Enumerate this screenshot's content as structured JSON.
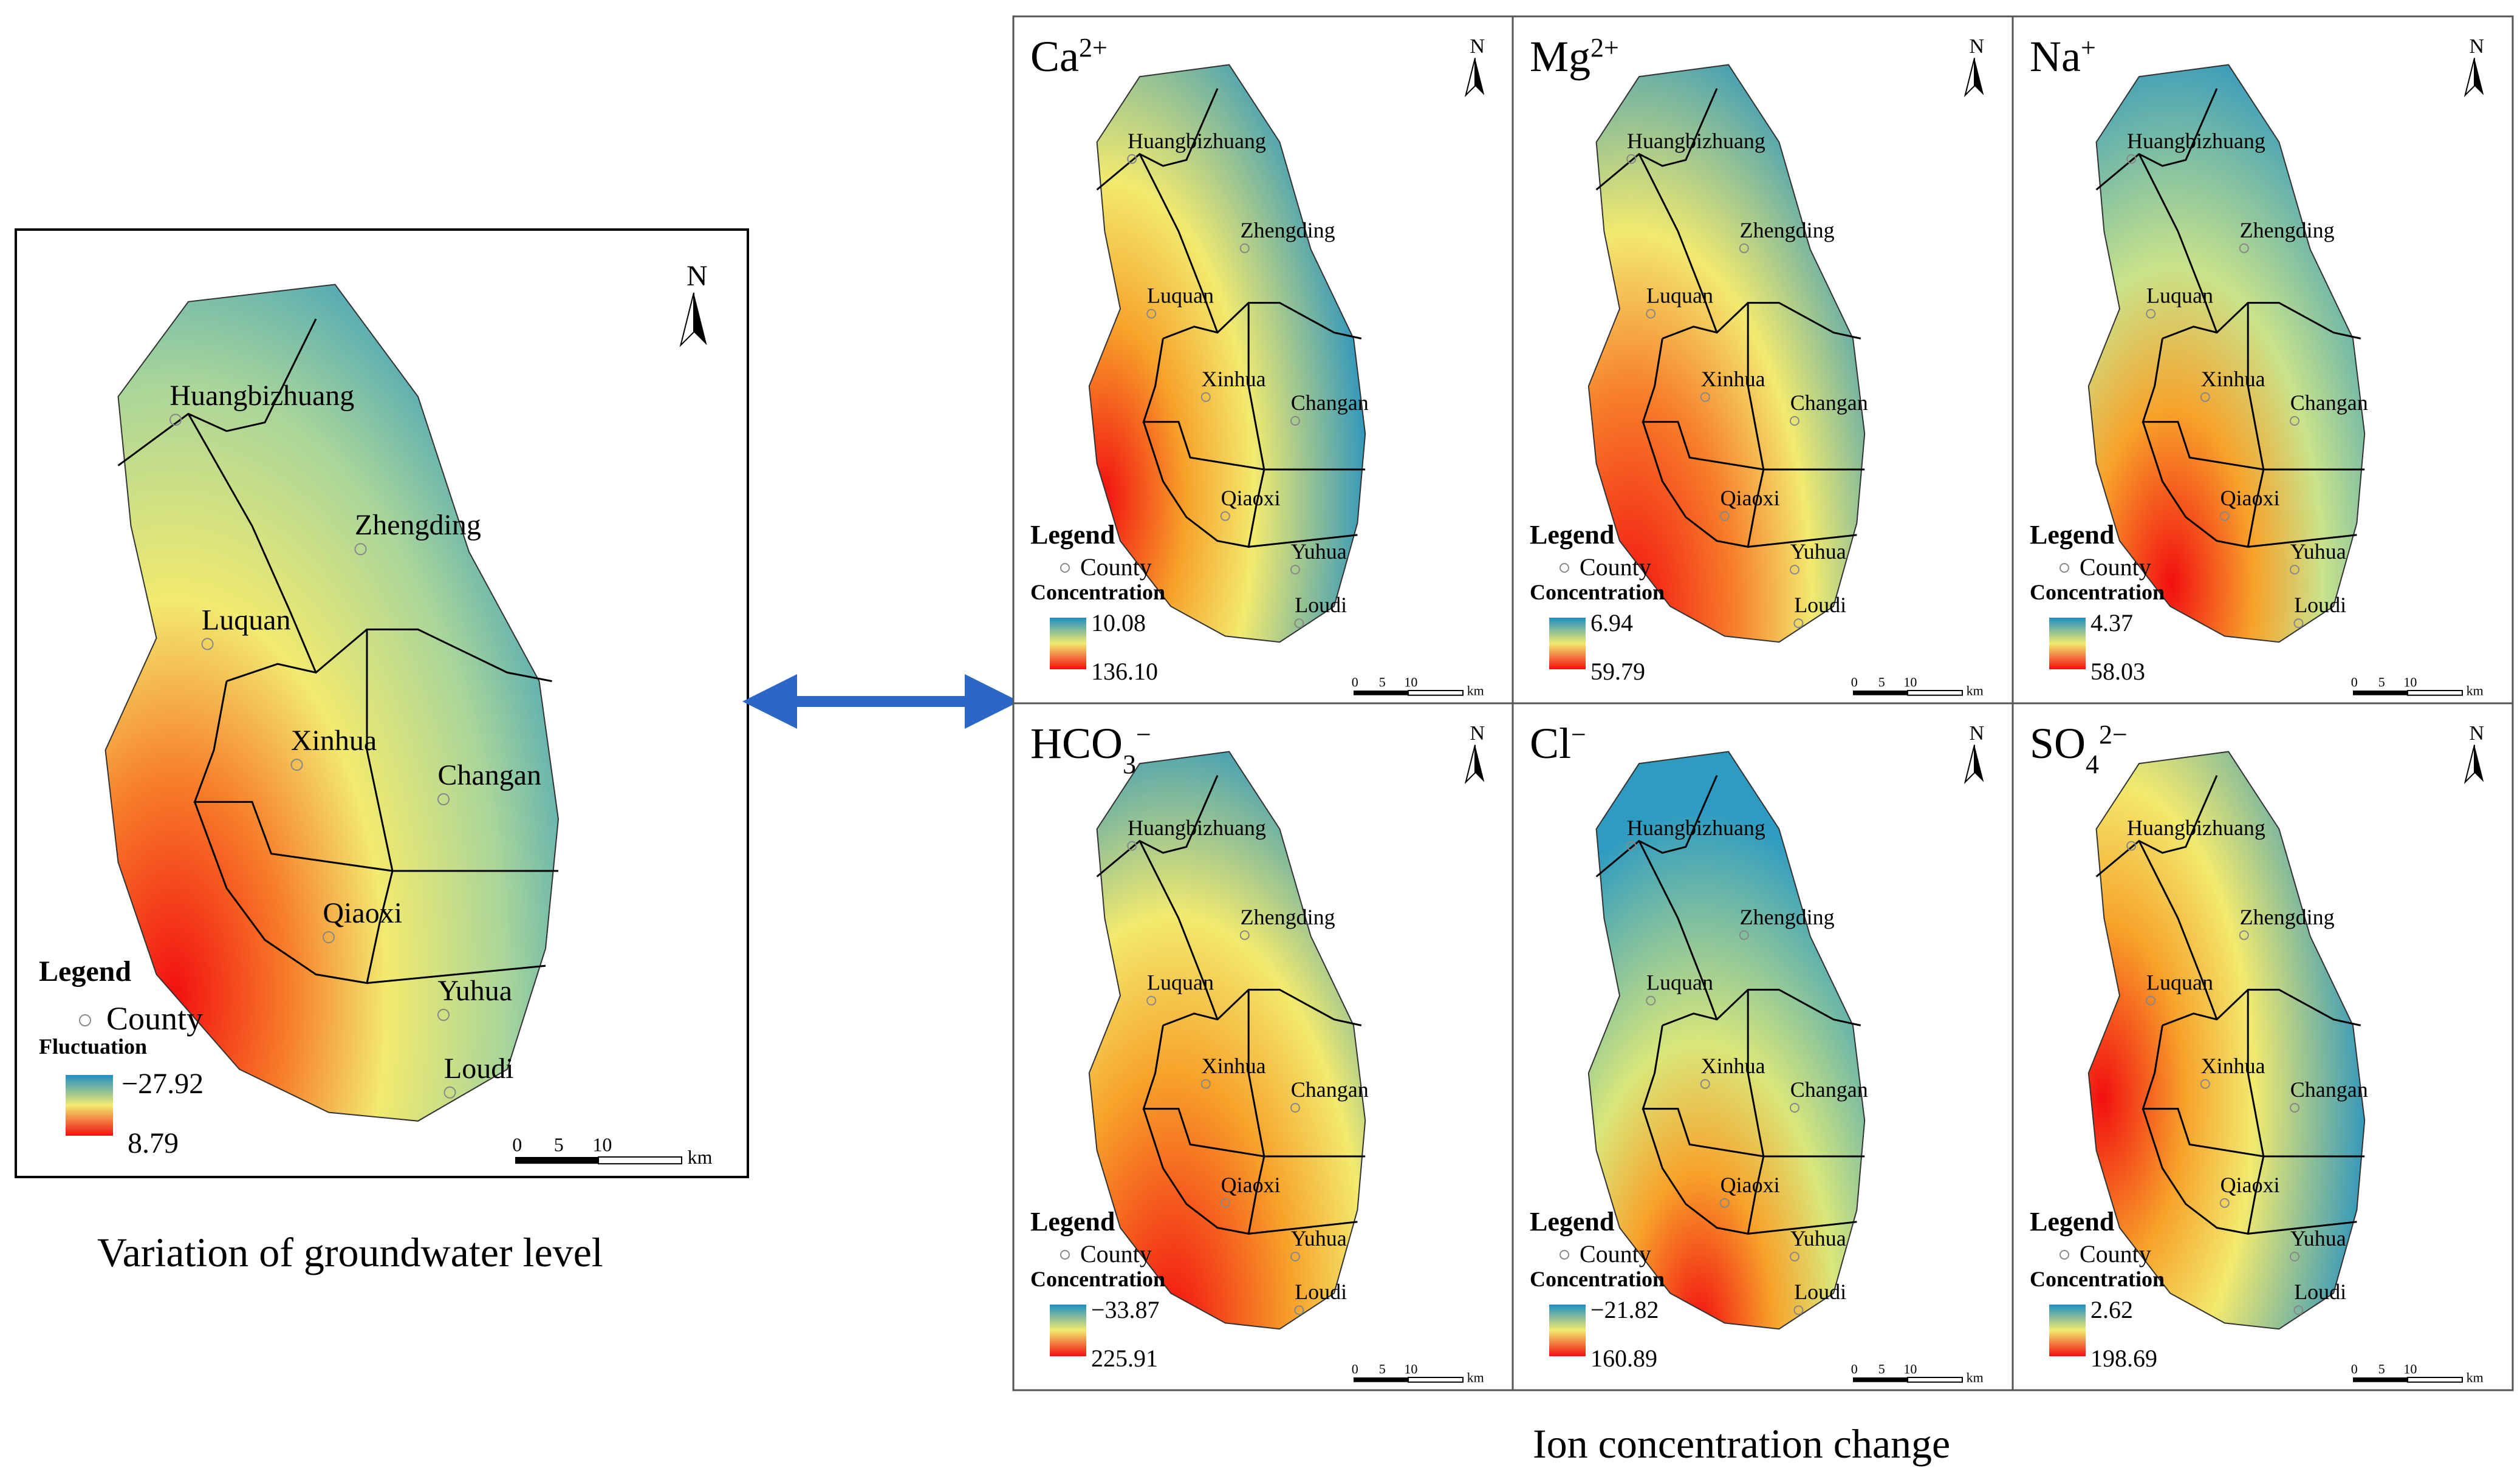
{
  "main_map": {
    "counties": [
      "Huangbizhuang",
      "Zhengding",
      "Luquan",
      "Xinhua",
      "Changan",
      "Qiaoxi",
      "Yuhua",
      "Loudi"
    ],
    "legend_title": "Legend",
    "legend_county": "County",
    "legend_variable": "Fluctuation",
    "legend_max": "−27.92",
    "legend_min": "8.79",
    "north": "N",
    "scale_labels": [
      "0",
      "5",
      "10"
    ],
    "scale_unit": "km",
    "caption": "Variation of groundwater level"
  },
  "ion_panels": [
    {
      "ion": "Ca",
      "sup": "2+",
      "sub": "",
      "max": "10.08",
      "min": "136.10"
    },
    {
      "ion": "Mg",
      "sup": "2+",
      "sub": "",
      "max": "6.94",
      "min": "59.79"
    },
    {
      "ion": "Na",
      "sup": "+",
      "sub": "",
      "max": "4.37",
      "min": "58.03"
    },
    {
      "ion": "HCO",
      "sup": "−",
      "sub": "3",
      "max": "−33.87",
      "min": "225.91"
    },
    {
      "ion": "Cl",
      "sup": "−",
      "sub": "",
      "max": "−21.82",
      "min": "160.89"
    },
    {
      "ion": "SO",
      "sup": "2−",
      "sub": "4",
      "max": "2.62",
      "min": "198.69"
    }
  ],
  "ion_legend": {
    "title": "Legend",
    "county": "County",
    "variable": "Concentration",
    "north": "N",
    "scale_labels": [
      "0",
      "5",
      "10"
    ],
    "scale_unit": "km"
  },
  "ion_caption": "Ion concentration change",
  "colors": {
    "high_blue": "#1f8fc4",
    "mid_yellow": "#f2ea6e",
    "low_red": "#f20f10",
    "arrow": "#2a67c6"
  }
}
